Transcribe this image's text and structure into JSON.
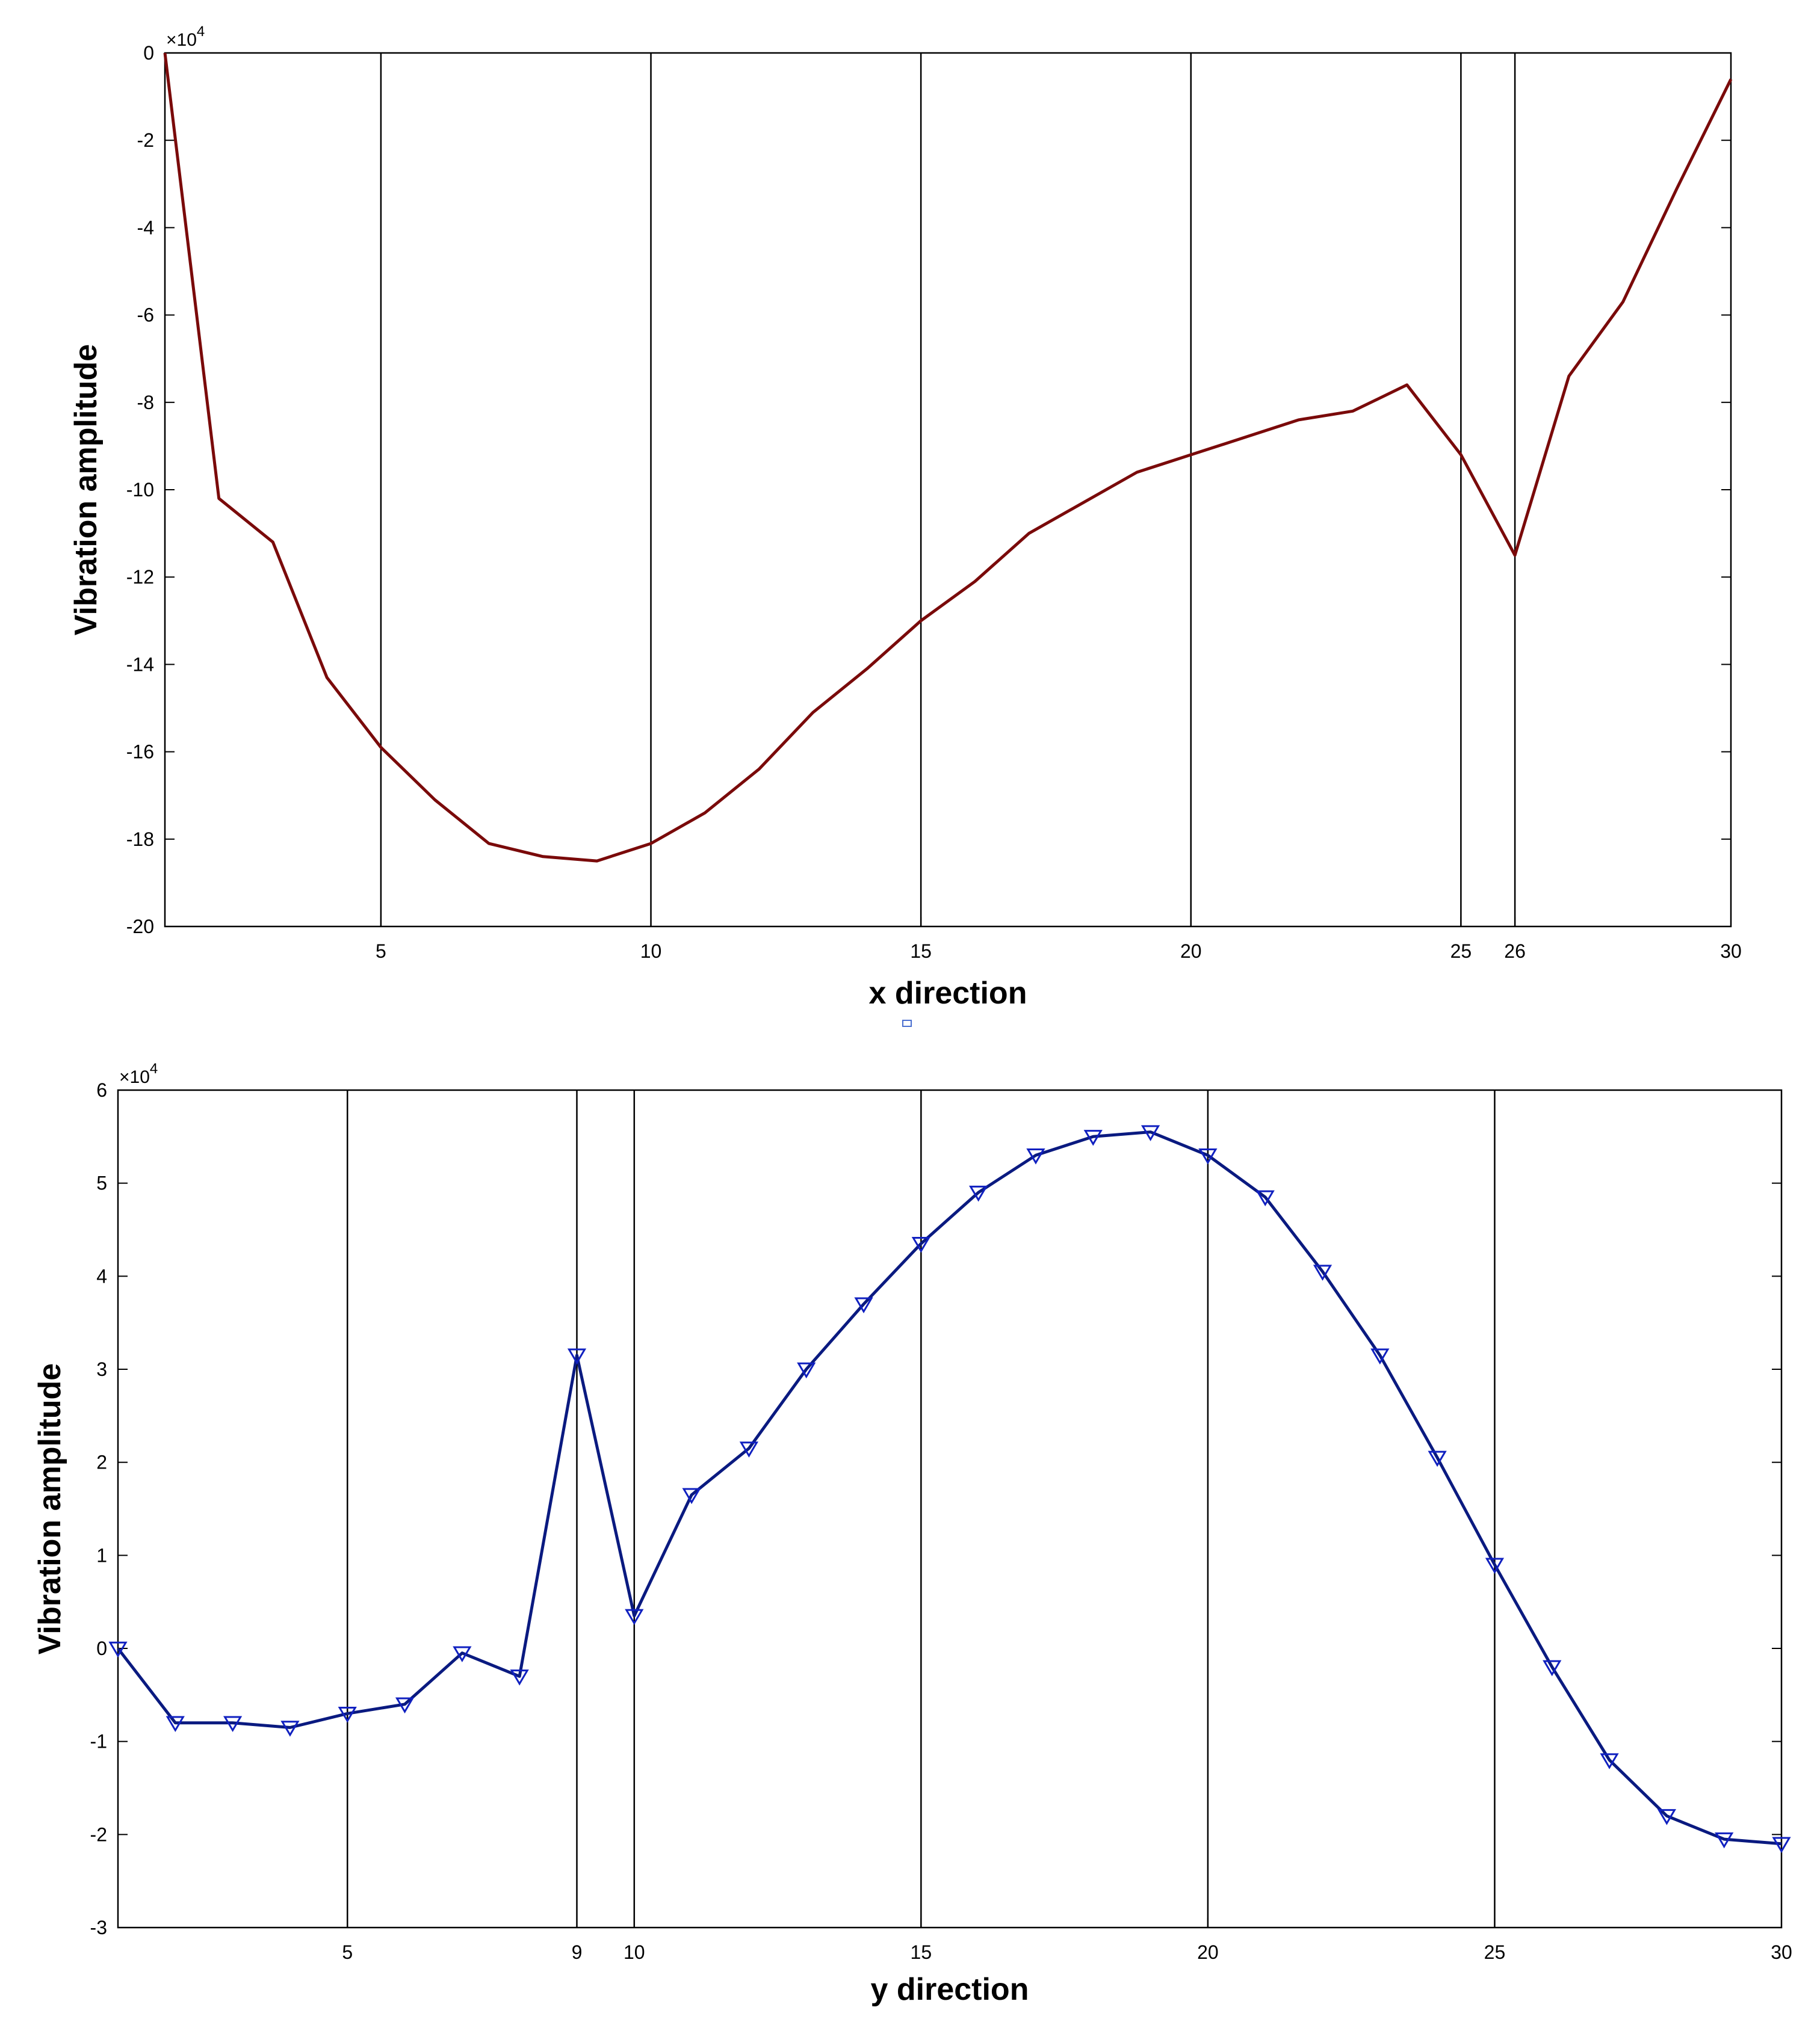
{
  "chart_data": [
    {
      "type": "line",
      "xlabel": "x direction",
      "ylabel": "Vibration amplitude",
      "y_exponent": "×10^4",
      "xlim": [
        1,
        30
      ],
      "ylim": [
        -20,
        0
      ],
      "x_ticks": [
        5,
        10,
        15,
        20,
        25,
        26,
        30
      ],
      "y_ticks": [
        0,
        -2,
        -4,
        -6,
        -8,
        -10,
        -12,
        -14,
        -16,
        -18,
        -20
      ],
      "vertical_gridlines": [
        5,
        10,
        15,
        20,
        25,
        26
      ],
      "grid": "x-only",
      "legend": "none",
      "series": [
        {
          "color": "#7a0a0a",
          "marker": "none",
          "x": [
            1,
            2,
            3,
            4,
            5,
            6,
            7,
            8,
            9,
            10,
            11,
            12,
            13,
            14,
            15,
            16,
            17,
            18,
            19,
            20,
            21,
            22,
            23,
            24,
            25,
            26,
            27,
            28,
            29,
            30
          ],
          "y": [
            0,
            -10.2,
            -11.2,
            -14.3,
            -15.9,
            -17.1,
            -18.1,
            -18.4,
            -18.5,
            -18.1,
            -17.4,
            -16.4,
            -15.1,
            -14.1,
            -13.0,
            -12.1,
            -11.0,
            -10.3,
            -9.6,
            -9.2,
            -8.8,
            -8.4,
            -8.2,
            -7.6,
            -9.2,
            -11.5,
            -7.4,
            -5.7,
            -3.1,
            -0.6
          ]
        }
      ]
    },
    {
      "type": "line",
      "xlabel": "y direction",
      "ylabel": "Vibration amplitude",
      "y_exponent": "×10^4",
      "xlim": [
        1,
        30
      ],
      "ylim": [
        -3,
        6
      ],
      "x_ticks": [
        5,
        9,
        10,
        15,
        20,
        25,
        30
      ],
      "y_ticks": [
        6,
        5,
        4,
        3,
        2,
        1,
        0,
        -1,
        -2,
        -3
      ],
      "vertical_gridlines": [
        5,
        9,
        10,
        15,
        20,
        25
      ],
      "grid": "x-only",
      "legend": "none",
      "series": [
        {
          "color": "#0a1a80",
          "marker": "triangle-down",
          "x": [
            1,
            2,
            3,
            4,
            5,
            6,
            7,
            8,
            9,
            10,
            11,
            12,
            13,
            14,
            15,
            16,
            17,
            18,
            19,
            20,
            21,
            22,
            23,
            24,
            25,
            26,
            27,
            28,
            29,
            30
          ],
          "y": [
            0,
            -0.8,
            -0.8,
            -0.85,
            -0.7,
            -0.6,
            -0.05,
            -0.3,
            3.15,
            0.35,
            1.65,
            2.15,
            3.0,
            3.7,
            4.35,
            4.9,
            5.3,
            5.5,
            5.55,
            5.3,
            4.85,
            4.05,
            3.15,
            2.05,
            0.9,
            -0.2,
            -1.2,
            -1.8,
            -2.05,
            -2.1
          ]
        }
      ]
    }
  ]
}
